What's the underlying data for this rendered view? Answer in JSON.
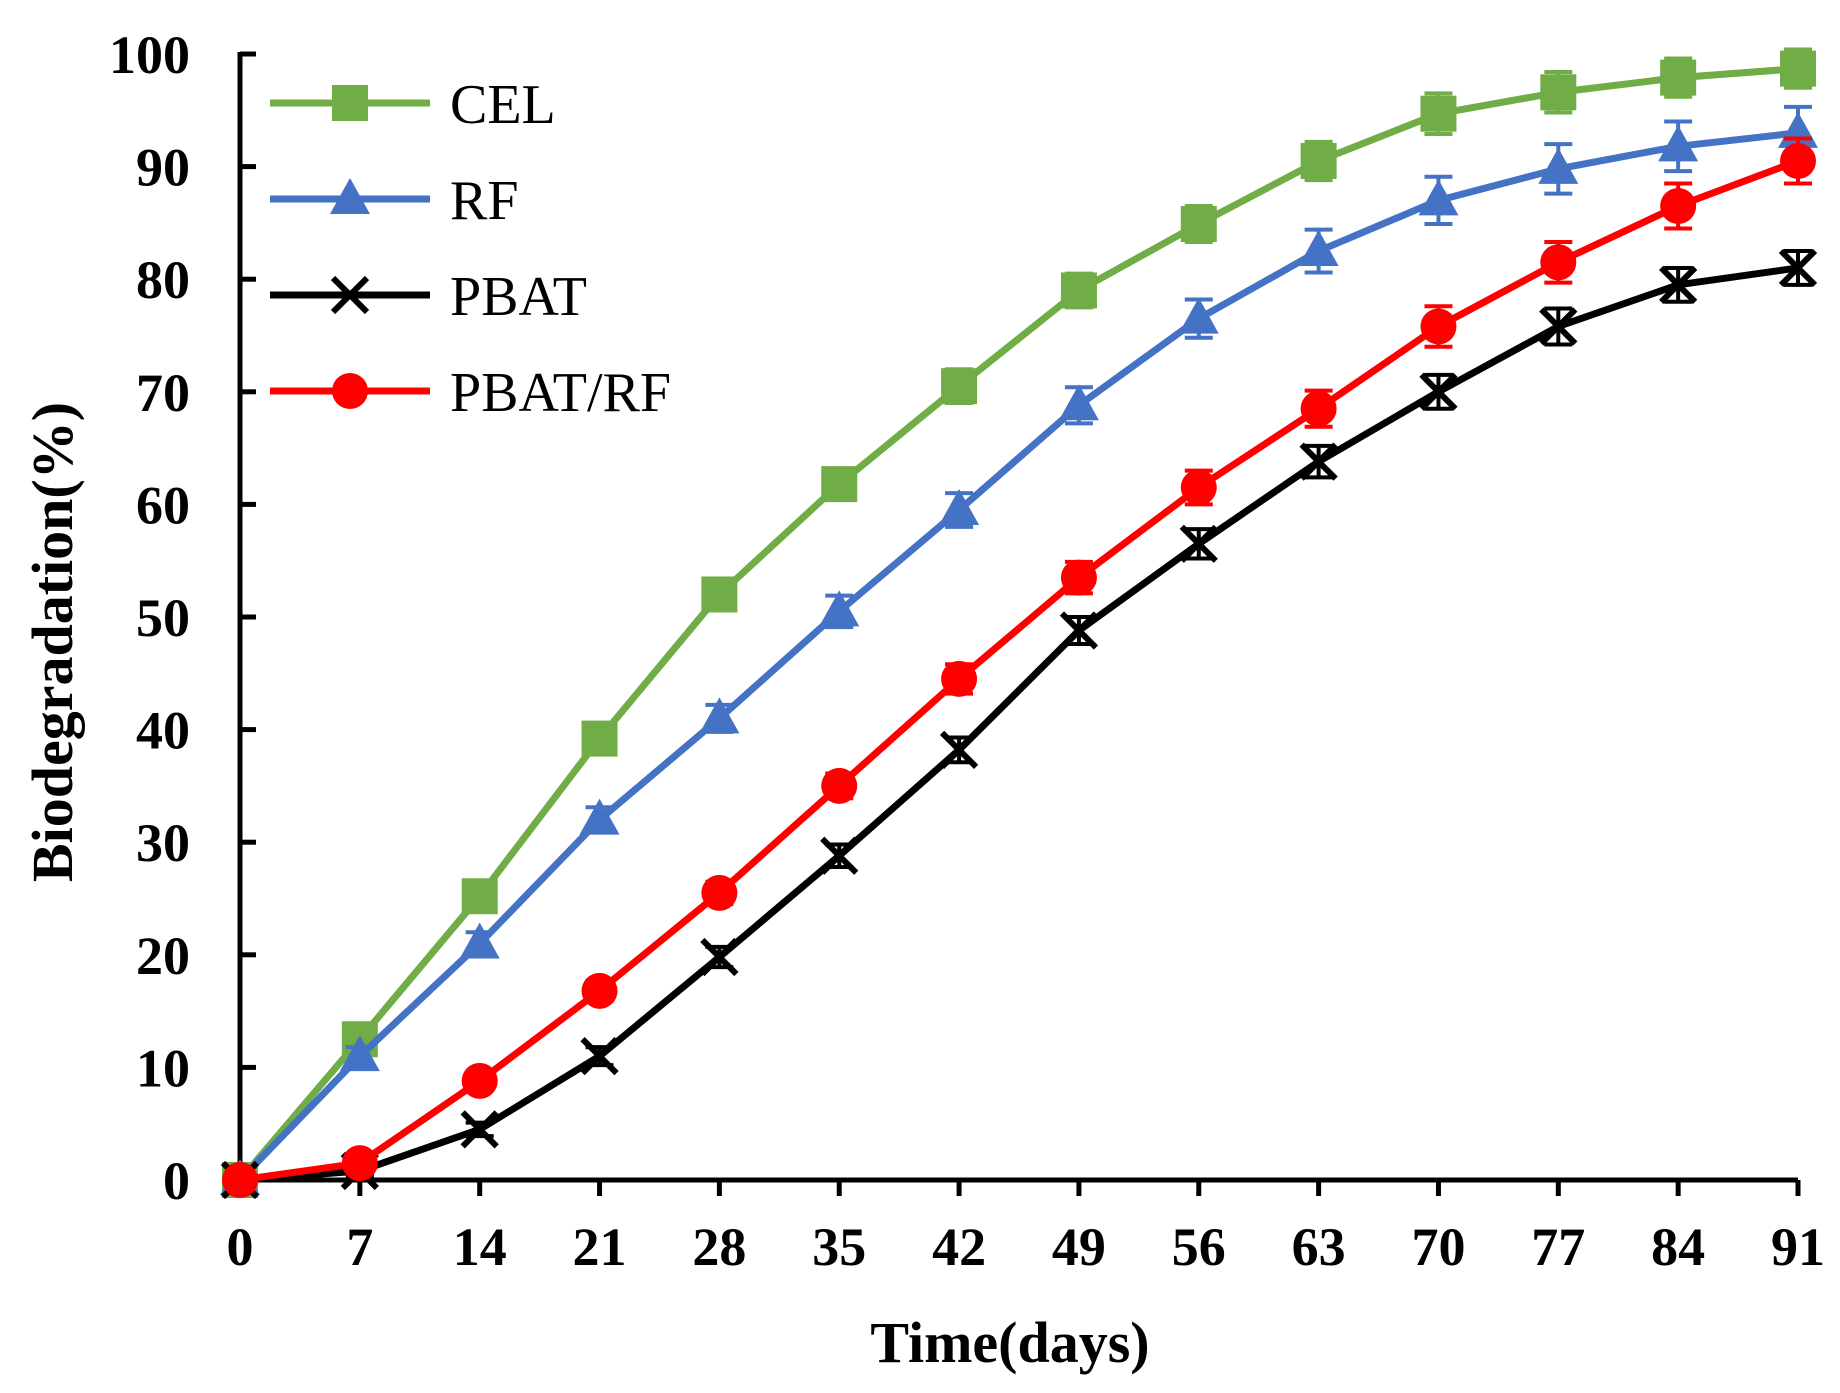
{
  "chart_data": {
    "type": "line",
    "title": "",
    "xlabel": "Time(days)",
    "ylabel": "Biodegradation(%)",
    "x": [
      0,
      7,
      14,
      21,
      28,
      35,
      42,
      49,
      56,
      63,
      70,
      77,
      84,
      91
    ],
    "x_tick_labels": [
      "0",
      "7",
      "14",
      "21",
      "28",
      "35",
      "42",
      "49",
      "56",
      "63",
      "70",
      "77",
      "84",
      "91"
    ],
    "y_tick_labels": [
      "0",
      "10",
      "20",
      "30",
      "40",
      "50",
      "60",
      "70",
      "80",
      "90",
      "100"
    ],
    "xlim": [
      0,
      91
    ],
    "ylim": [
      0,
      100
    ],
    "grid": false,
    "legend_position": "top-left",
    "series": [
      {
        "name": "CEL",
        "color": "#70AD47",
        "marker": "square",
        "values": [
          0,
          12.5,
          25.2,
          39.2,
          52.0,
          61.8,
          70.5,
          79.0,
          84.9,
          90.5,
          94.7,
          96.6,
          97.9,
          98.7
        ],
        "errors": [
          0.3,
          0.9,
          1.1,
          1.1,
          1.2,
          1.4,
          1.5,
          1.5,
          1.6,
          1.7,
          1.8,
          1.8,
          1.7,
          1.7
        ]
      },
      {
        "name": "RF",
        "color": "#4472C4",
        "marker": "triangle",
        "values": [
          0,
          11.0,
          21.0,
          32.0,
          41.0,
          50.5,
          59.5,
          68.8,
          76.5,
          82.5,
          87.0,
          89.8,
          91.8,
          93.0
        ],
        "errors": [
          0.3,
          0.8,
          1.0,
          1.1,
          1.2,
          1.4,
          1.5,
          1.6,
          1.7,
          1.9,
          2.1,
          2.2,
          2.2,
          2.3
        ]
      },
      {
        "name": "PBAT",
        "color": "#000000",
        "marker": "x",
        "values": [
          0,
          0.8,
          4.5,
          11.0,
          19.8,
          28.8,
          38.2,
          48.8,
          56.5,
          63.8,
          70.0,
          75.8,
          79.5,
          81.0
        ],
        "errors": [
          0.3,
          0.4,
          0.6,
          0.8,
          0.9,
          1.0,
          1.1,
          1.2,
          1.3,
          1.4,
          1.5,
          1.6,
          1.5,
          1.5
        ]
      },
      {
        "name": "PBAT/RF",
        "color": "#FF0000",
        "marker": "circle",
        "values": [
          0,
          1.5,
          8.8,
          16.8,
          25.5,
          35.0,
          44.5,
          53.5,
          61.5,
          68.5,
          75.8,
          81.5,
          86.5,
          90.5
        ],
        "errors": [
          0.3,
          0.4,
          0.8,
          0.9,
          1.0,
          1.1,
          1.3,
          1.4,
          1.5,
          1.6,
          1.8,
          1.8,
          2.0,
          2.0
        ]
      }
    ]
  }
}
